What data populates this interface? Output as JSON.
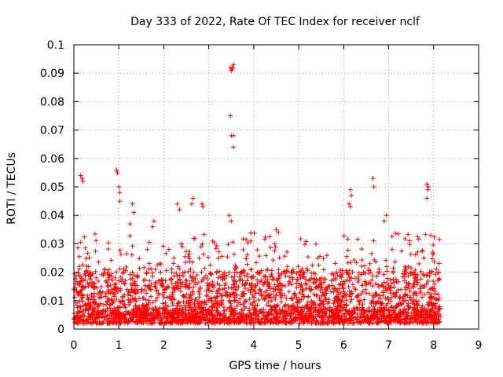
{
  "chart_data": {
    "type": "scatter",
    "title": "Day 333 of 2022, Rate Of TEC Index for receiver nclf",
    "xlabel": "GPS time / hours",
    "ylabel": "ROTI / TECUs",
    "xlim": [
      0,
      9
    ],
    "ylim": [
      0,
      0.1
    ],
    "xticks": [
      0,
      1,
      2,
      3,
      4,
      5,
      6,
      7,
      8,
      9
    ],
    "yticks": [
      0,
      0.01,
      0.02,
      0.03,
      0.04,
      0.05,
      0.06,
      0.07,
      0.08,
      0.09,
      0.1
    ],
    "xtick_labels": [
      "0",
      "1",
      "2",
      "3",
      "4",
      "5",
      "6",
      "7",
      "8",
      "9"
    ],
    "ytick_labels": [
      "0",
      "0.01",
      "0.02",
      "0.03",
      "0.04",
      "0.05",
      "0.06",
      "0.07",
      "0.08",
      "0.09",
      "0.1"
    ],
    "grid": true,
    "marker": "+",
    "color": "#ff0000",
    "series": [
      {
        "name": "ROTI",
        "x_range": [
          0,
          8.15
        ],
        "bulk_y_range": [
          0.002,
          0.02
        ],
        "outliers": [
          {
            "x": 0.15,
            "y": 0.054
          },
          {
            "x": 0.18,
            "y": 0.053
          },
          {
            "x": 0.2,
            "y": 0.052
          },
          {
            "x": 0.95,
            "y": 0.056
          },
          {
            "x": 0.97,
            "y": 0.055
          },
          {
            "x": 1.0,
            "y": 0.05
          },
          {
            "x": 1.02,
            "y": 0.048
          },
          {
            "x": 1.02,
            "y": 0.045
          },
          {
            "x": 1.3,
            "y": 0.044
          },
          {
            "x": 1.33,
            "y": 0.041
          },
          {
            "x": 1.25,
            "y": 0.037
          },
          {
            "x": 1.75,
            "y": 0.036
          },
          {
            "x": 1.78,
            "y": 0.038
          },
          {
            "x": 2.3,
            "y": 0.044
          },
          {
            "x": 2.35,
            "y": 0.042
          },
          {
            "x": 2.65,
            "y": 0.046
          },
          {
            "x": 2.62,
            "y": 0.044
          },
          {
            "x": 2.85,
            "y": 0.044
          },
          {
            "x": 2.87,
            "y": 0.043
          },
          {
            "x": 3.48,
            "y": 0.092
          },
          {
            "x": 3.5,
            "y": 0.091
          },
          {
            "x": 3.53,
            "y": 0.092
          },
          {
            "x": 3.55,
            "y": 0.093
          },
          {
            "x": 3.52,
            "y": 0.0915
          },
          {
            "x": 3.48,
            "y": 0.075
          },
          {
            "x": 3.5,
            "y": 0.068
          },
          {
            "x": 3.55,
            "y": 0.068
          },
          {
            "x": 3.55,
            "y": 0.064
          },
          {
            "x": 3.45,
            "y": 0.04
          },
          {
            "x": 3.5,
            "y": 0.038
          },
          {
            "x": 4.5,
            "y": 0.035
          },
          {
            "x": 4.55,
            "y": 0.034
          },
          {
            "x": 6.15,
            "y": 0.049
          },
          {
            "x": 6.17,
            "y": 0.047
          },
          {
            "x": 6.12,
            "y": 0.044
          },
          {
            "x": 6.15,
            "y": 0.043
          },
          {
            "x": 6.65,
            "y": 0.053
          },
          {
            "x": 6.67,
            "y": 0.05
          },
          {
            "x": 6.95,
            "y": 0.04
          },
          {
            "x": 6.9,
            "y": 0.038
          },
          {
            "x": 7.85,
            "y": 0.051
          },
          {
            "x": 7.88,
            "y": 0.05
          },
          {
            "x": 7.87,
            "y": 0.049
          },
          {
            "x": 7.85,
            "y": 0.046
          }
        ]
      }
    ]
  }
}
